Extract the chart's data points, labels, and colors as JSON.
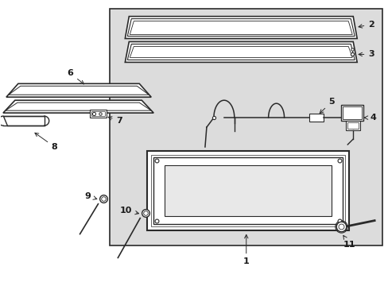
{
  "bg_color": "#ffffff",
  "box_bg": "#dcdcdc",
  "line_color": "#2a2a2a",
  "fig_width": 4.89,
  "fig_height": 3.6,
  "dpi": 100
}
